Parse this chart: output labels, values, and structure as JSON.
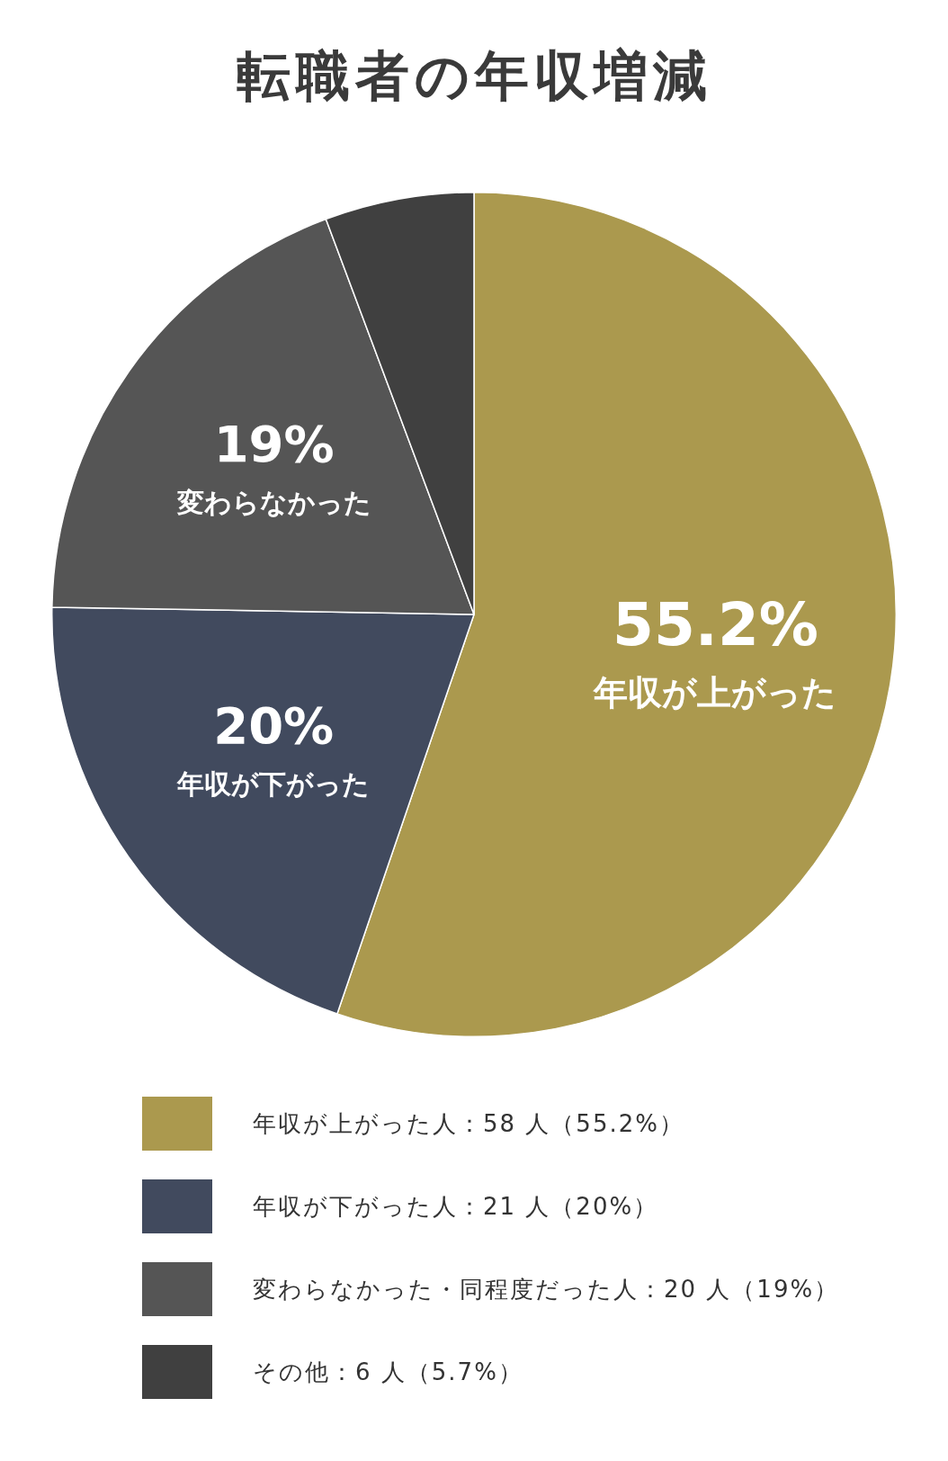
{
  "chart_data": {
    "type": "pie",
    "title": "転職者の年収増減",
    "categories": [
      "年収が上がった人：58 人（55.2%）",
      "年収が下がった人：21 人（20%）",
      "変わらなかった・同程度だった人：20 人（19%）",
      "その他：6 人（5.7%）"
    ],
    "values": [
      55.2,
      20,
      19,
      5.7
    ],
    "colors": [
      "#ab994e",
      "#414a5e",
      "#555555",
      "#404040"
    ],
    "value_labels": [
      "55.2%",
      "20%",
      "19%",
      null
    ],
    "annotations": [
      "年収が上がった",
      "年収が下がった",
      "変わらなかった"
    ],
    "legend": "bottom"
  }
}
